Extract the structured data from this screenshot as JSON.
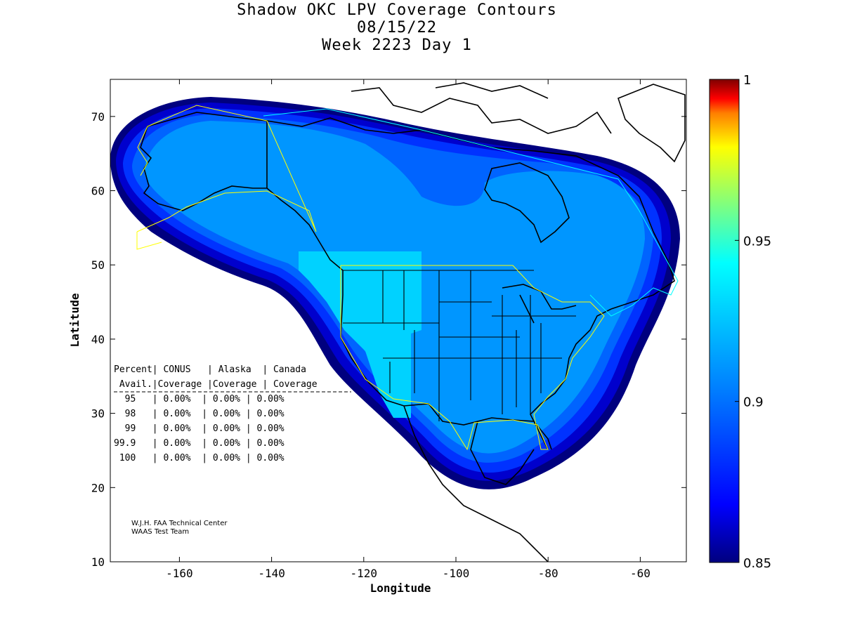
{
  "title": {
    "line1": "Shadow OKC LPV Coverage Contours",
    "line2": "08/15/22",
    "line3": "Week 2223 Day 1"
  },
  "axes": {
    "xlabel": "Longitude",
    "ylabel": "Latitude",
    "xlim": [
      -175,
      -50
    ],
    "ylim": [
      10,
      75
    ],
    "xticks": [
      -160,
      -140,
      -120,
      -100,
      -80,
      -60
    ],
    "yticks": [
      10,
      20,
      30,
      40,
      50,
      60,
      70
    ]
  },
  "colorbar": {
    "range": [
      0.85,
      1
    ],
    "ticks": [
      "1",
      "0.95",
      "0.9",
      "0.85"
    ],
    "colors": [
      "#00007f",
      "#0000ff",
      "#007fff",
      "#00ffff",
      "#7fff7f",
      "#ffff00",
      "#ff7f00",
      "#ff0000",
      "#7f0000"
    ]
  },
  "table": {
    "header1": "Percent| CONUS   | Alaska  | Canada",
    "header2": " Avail.|Coverage |Coverage | Coverage",
    "rows": [
      "  95   | 0.00%  | 0.00% | 0.00%",
      "  98   | 0.00%  | 0.00% | 0.00%",
      "  99   | 0.00%  | 0.00% | 0.00%",
      "99.9   | 0.00%  | 0.00% | 0.00%",
      " 100   | 0.00%  | 0.00% | 0.00%"
    ]
  },
  "credit": {
    "line1": "W.J.H. FAA Technical Center",
    "line2": "WAAS Test Team"
  }
}
